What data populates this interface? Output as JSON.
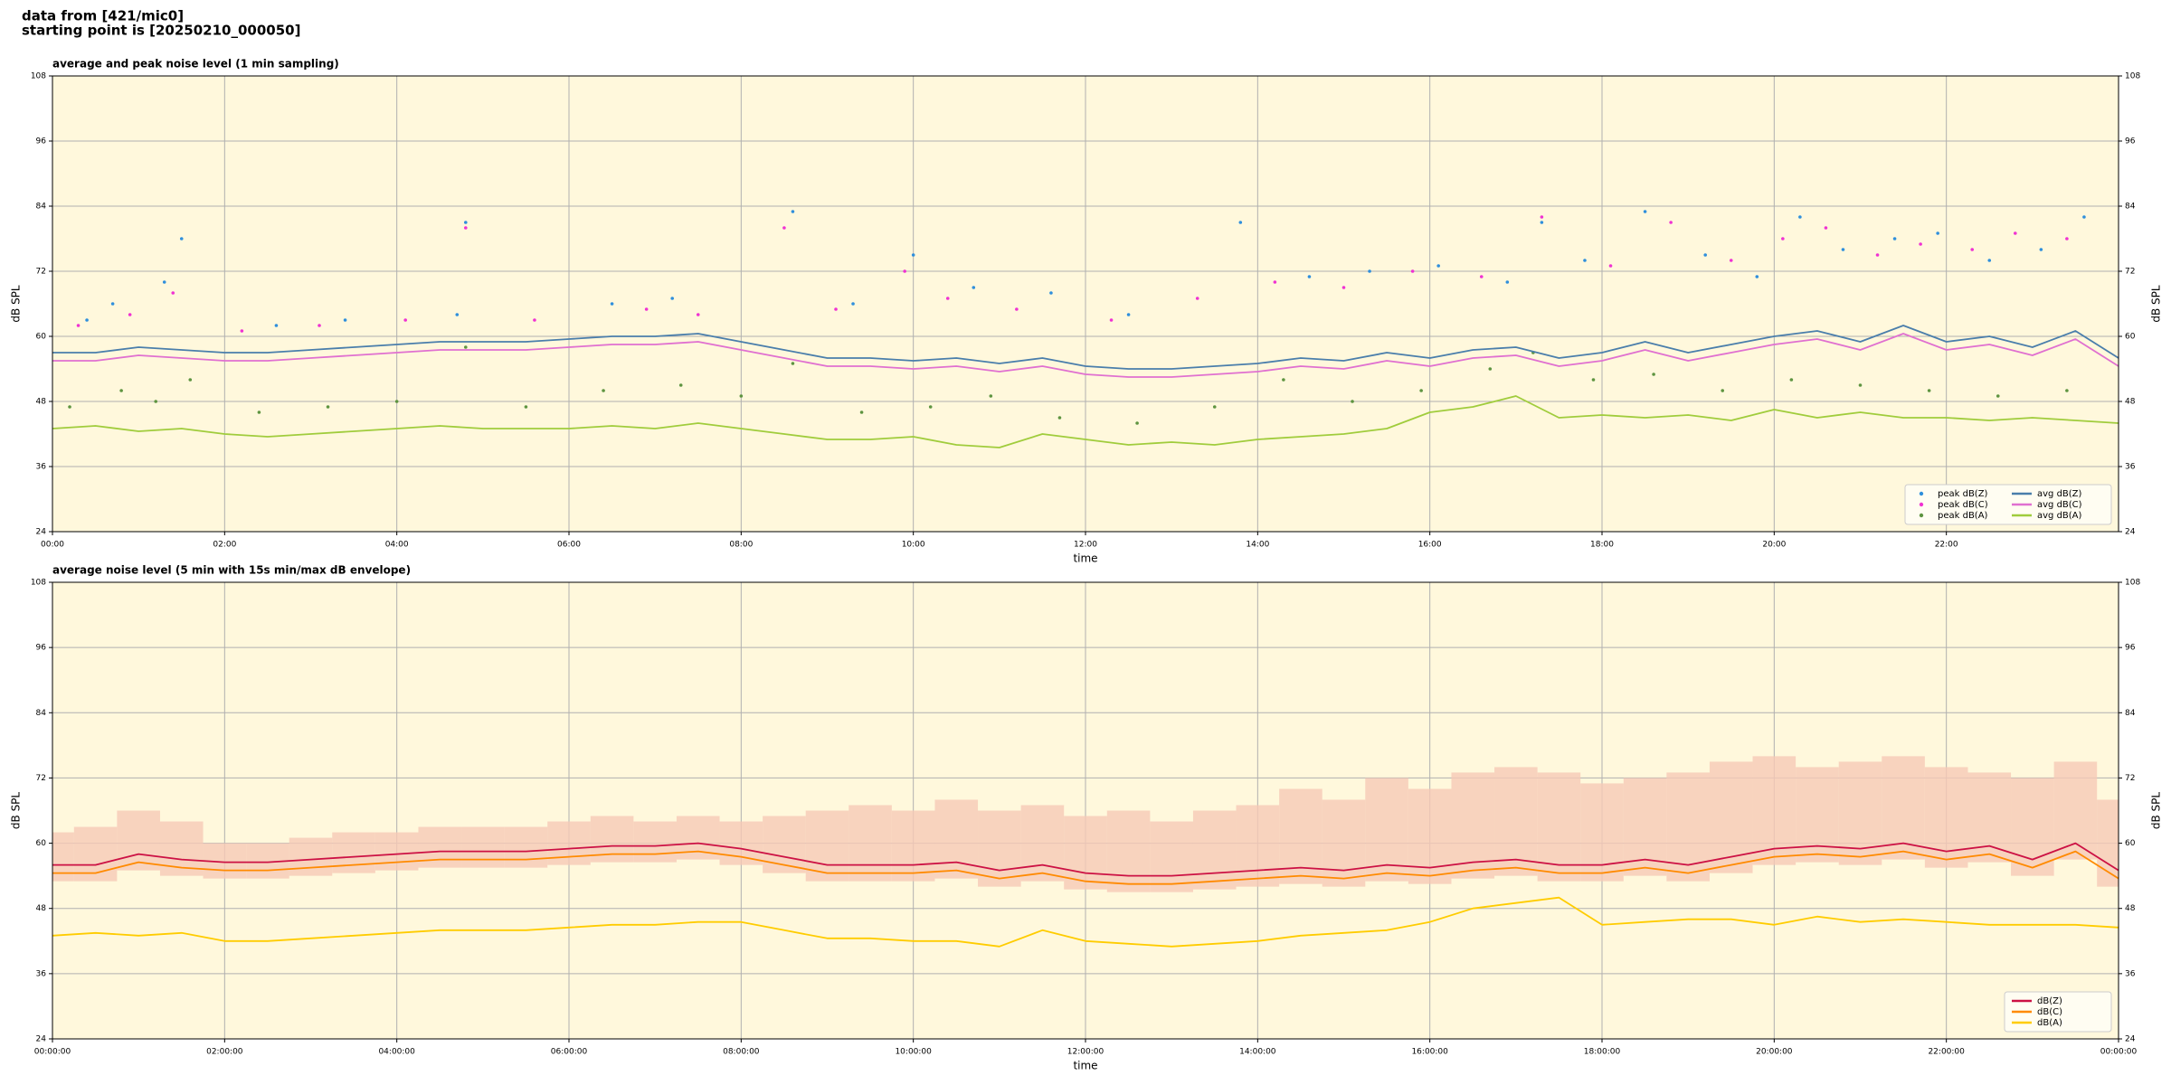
{
  "header": {
    "lines": [
      "data from [421/mic0]",
      "starting point is [20250210_000050]"
    ]
  },
  "chart_data": [
    {
      "type": "line",
      "title": "average and peak noise level (1 min sampling)",
      "xlabel": "time",
      "ylabel": "dB SPL",
      "xlim": [
        0,
        24
      ],
      "ylim": [
        24,
        108
      ],
      "yticks": [
        24,
        36,
        48,
        60,
        72,
        84,
        96,
        108
      ],
      "xticks": [
        {
          "value": 0,
          "label": "00:00"
        },
        {
          "value": 2,
          "label": "02:00"
        },
        {
          "value": 4,
          "label": "04:00"
        },
        {
          "value": 6,
          "label": "06:00"
        },
        {
          "value": 8,
          "label": "08:00"
        },
        {
          "value": 10,
          "label": "10:00"
        },
        {
          "value": 12,
          "label": "12:00"
        },
        {
          "value": 14,
          "label": "14:00"
        },
        {
          "value": 16,
          "label": "16:00"
        },
        {
          "value": 18,
          "label": "18:00"
        },
        {
          "value": 20,
          "label": "20:00"
        },
        {
          "value": 22,
          "label": "22:00"
        }
      ],
      "grid": true,
      "legend": "lower right",
      "legend_columns": 2,
      "x": [
        0,
        0.5,
        1,
        1.5,
        2,
        2.5,
        3,
        3.5,
        4,
        4.5,
        5,
        5.5,
        6,
        6.5,
        7,
        7.5,
        8,
        8.5,
        9,
        9.5,
        10,
        10.5,
        11,
        11.5,
        12,
        12.5,
        13,
        13.5,
        14,
        14.5,
        15,
        15.5,
        16,
        16.5,
        17,
        17.5,
        18,
        18.5,
        19,
        19.5,
        20,
        20.5,
        21,
        21.5,
        22,
        22.5,
        23,
        23.5,
        24
      ],
      "series": [
        {
          "name": "peak dB(Z)",
          "style": "scatter",
          "color": "#2f8fdc",
          "x": [
            0.4,
            0.7,
            1.3,
            1.5,
            2.6,
            3.4,
            4.7,
            4.8,
            6.5,
            7.2,
            8.6,
            9.3,
            10.0,
            10.7,
            11.6,
            12.5,
            13.8,
            14.6,
            15.3,
            16.1,
            16.9,
            17.3,
            17.8,
            18.5,
            19.2,
            19.8,
            20.3,
            20.8,
            21.4,
            21.9,
            22.5,
            23.1,
            23.6
          ],
          "values": [
            63,
            66,
            70,
            78,
            62,
            63,
            64,
            81,
            66,
            67,
            83,
            66,
            75,
            69,
            68,
            64,
            81,
            71,
            72,
            73,
            70,
            81,
            74,
            83,
            75,
            71,
            82,
            76,
            78,
            79,
            74,
            76,
            82
          ]
        },
        {
          "name": "peak dB(C)",
          "style": "scatter",
          "color": "#f032d2",
          "x": [
            0.3,
            0.9,
            1.4,
            2.2,
            3.1,
            4.1,
            4.8,
            5.6,
            6.9,
            7.5,
            8.5,
            9.1,
            9.9,
            10.4,
            11.2,
            12.3,
            13.3,
            14.2,
            15.0,
            15.8,
            16.6,
            17.3,
            18.1,
            18.8,
            19.5,
            20.1,
            20.6,
            21.2,
            21.7,
            22.3,
            22.8,
            23.4
          ],
          "values": [
            62,
            64,
            68,
            61,
            62,
            63,
            80,
            63,
            65,
            64,
            80,
            65,
            72,
            67,
            65,
            63,
            67,
            70,
            69,
            72,
            71,
            82,
            73,
            81,
            74,
            78,
            80,
            75,
            77,
            76,
            79,
            78
          ]
        },
        {
          "name": "peak dB(A)",
          "style": "scatter",
          "color": "#5e9440",
          "x": [
            0.2,
            0.8,
            1.2,
            1.6,
            2.4,
            3.2,
            4.0,
            4.8,
            5.5,
            6.4,
            7.3,
            8.0,
            8.6,
            9.4,
            10.2,
            10.9,
            11.7,
            12.6,
            13.5,
            14.3,
            15.1,
            15.9,
            16.7,
            17.2,
            17.9,
            18.6,
            19.4,
            20.2,
            21.0,
            21.8,
            22.6,
            23.4
          ],
          "values": [
            47,
            50,
            48,
            52,
            46,
            47,
            48,
            58,
            47,
            50,
            51,
            49,
            55,
            46,
            47,
            49,
            45,
            44,
            47,
            52,
            48,
            50,
            54,
            57,
            52,
            53,
            50,
            52,
            51,
            50,
            49,
            50
          ]
        },
        {
          "name": "avg dB(Z)",
          "style": "line",
          "color": "#4a7eab",
          "values": [
            57,
            57,
            58,
            57.5,
            57,
            57,
            57.5,
            58,
            58.5,
            59,
            59,
            59,
            59.5,
            60,
            60,
            60.5,
            59,
            57.5,
            56,
            56,
            55.5,
            56,
            55,
            56,
            54.5,
            54,
            54,
            54.5,
            55,
            56,
            55.5,
            57,
            56,
            57.5,
            58,
            56,
            57,
            59,
            57,
            58.5,
            60,
            61,
            59,
            62,
            59,
            60,
            58,
            61,
            56
          ]
        },
        {
          "name": "avg dB(C)",
          "style": "line",
          "color": "#e070d0",
          "values": [
            55.5,
            55.5,
            56.5,
            56,
            55.5,
            55.5,
            56,
            56.5,
            57,
            57.5,
            57.5,
            57.5,
            58,
            58.5,
            58.5,
            59,
            57.5,
            56,
            54.5,
            54.5,
            54,
            54.5,
            53.5,
            54.5,
            53,
            52.5,
            52.5,
            53,
            53.5,
            54.5,
            54,
            55.5,
            54.5,
            56,
            56.5,
            54.5,
            55.5,
            57.5,
            55.5,
            57,
            58.5,
            59.5,
            57.5,
            60.5,
            57.5,
            58.5,
            56.5,
            59.5,
            54.5
          ]
        },
        {
          "name": "avg dB(A)",
          "style": "line",
          "color": "#a0cc3c",
          "values": [
            43,
            43.5,
            42.5,
            43,
            42,
            41.5,
            42,
            42.5,
            43,
            43.5,
            43,
            43,
            43,
            43.5,
            43,
            44,
            43,
            42,
            41,
            41,
            41.5,
            40,
            39.5,
            42,
            41,
            40,
            40.5,
            40,
            41,
            41.5,
            42,
            43,
            46,
            47,
            49,
            45,
            45.5,
            45,
            45.5,
            44.5,
            46.5,
            45,
            46,
            45,
            45,
            44.5,
            45,
            44.5,
            44
          ]
        }
      ]
    },
    {
      "type": "line",
      "title": "average noise level (5 min with 15s min/max dB envelope)",
      "xlabel": "time",
      "ylabel": "dB SPL",
      "xlim": [
        0,
        24
      ],
      "ylim": [
        24,
        108
      ],
      "yticks": [
        24,
        36,
        48,
        60,
        72,
        84,
        96,
        108
      ],
      "xticks": [
        {
          "value": 0,
          "label": "00:00:00"
        },
        {
          "value": 2,
          "label": "02:00:00"
        },
        {
          "value": 4,
          "label": "04:00:00"
        },
        {
          "value": 6,
          "label": "06:00:00"
        },
        {
          "value": 8,
          "label": "08:00:00"
        },
        {
          "value": 10,
          "label": "10:00:00"
        },
        {
          "value": 12,
          "label": "12:00:00"
        },
        {
          "value": 14,
          "label": "14:00:00"
        },
        {
          "value": 16,
          "label": "16:00:00"
        },
        {
          "value": 18,
          "label": "18:00:00"
        },
        {
          "value": 20,
          "label": "20:00:00"
        },
        {
          "value": 22,
          "label": "22:00:00"
        },
        {
          "value": 24,
          "label": "00:00:00"
        }
      ],
      "grid": true,
      "legend": "lower right",
      "legend_columns": 1,
      "x": [
        0,
        0.5,
        1,
        1.5,
        2,
        2.5,
        3,
        3.5,
        4,
        4.5,
        5,
        5.5,
        6,
        6.5,
        7,
        7.5,
        8,
        8.5,
        9,
        9.5,
        10,
        10.5,
        11,
        11.5,
        12,
        12.5,
        13,
        13.5,
        14,
        14.5,
        15,
        15.5,
        16,
        16.5,
        17,
        17.5,
        18,
        18.5,
        19,
        19.5,
        20,
        20.5,
        21,
        21.5,
        22,
        22.5,
        23,
        23.5,
        24
      ],
      "envelope": {
        "color": "#f6c9b6",
        "upper": [
          62,
          63,
          66,
          64,
          60,
          60,
          61,
          62,
          62,
          63,
          63,
          63,
          64,
          65,
          64,
          65,
          64,
          65,
          66,
          67,
          66,
          68,
          66,
          67,
          65,
          66,
          64,
          66,
          67,
          70,
          68,
          72,
          70,
          73,
          74,
          73,
          71,
          72,
          73,
          75,
          76,
          74,
          75,
          76,
          74,
          73,
          72,
          75,
          68
        ],
        "lower": [
          53,
          53,
          55,
          54,
          53.5,
          53.5,
          54,
          54.5,
          55,
          55.5,
          55.5,
          55.5,
          56,
          56.5,
          56.5,
          57,
          56,
          54.5,
          53,
          53,
          53,
          53.5,
          52,
          53,
          51.5,
          51,
          51,
          51.5,
          52,
          52.5,
          52,
          53,
          52.5,
          53.5,
          54,
          53,
          53,
          54,
          53,
          54.5,
          56,
          56.5,
          56,
          57,
          55.5,
          56.5,
          54,
          57,
          52
        ]
      },
      "series": [
        {
          "name": "dB(Z)",
          "style": "line",
          "color": "#cc1144",
          "values": [
            56,
            56,
            58,
            57,
            56.5,
            56.5,
            57,
            57.5,
            58,
            58.5,
            58.5,
            58.5,
            59,
            59.5,
            59.5,
            60,
            59,
            57.5,
            56,
            56,
            56,
            56.5,
            55,
            56,
            54.5,
            54,
            54,
            54.5,
            55,
            55.5,
            55,
            56,
            55.5,
            56.5,
            57,
            56,
            56,
            57,
            56,
            57.5,
            59,
            59.5,
            59,
            60,
            58.5,
            59.5,
            57,
            60,
            55
          ]
        },
        {
          "name": "dB(C)",
          "style": "line",
          "color": "#ff8a00",
          "values": [
            54.5,
            54.5,
            56.5,
            55.5,
            55,
            55,
            55.5,
            56,
            56.5,
            57,
            57,
            57,
            57.5,
            58,
            58,
            58.5,
            57.5,
            56,
            54.5,
            54.5,
            54.5,
            55,
            53.5,
            54.5,
            53,
            52.5,
            52.5,
            53,
            53.5,
            54,
            53.5,
            54.5,
            54,
            55,
            55.5,
            54.5,
            54.5,
            55.5,
            54.5,
            56,
            57.5,
            58,
            57.5,
            58.5,
            57,
            58,
            55.5,
            58.5,
            53.5
          ]
        },
        {
          "name": "dB(A)",
          "style": "line",
          "color": "#ffcc00",
          "values": [
            43,
            43.5,
            43,
            43.5,
            42,
            42,
            42.5,
            43,
            43.5,
            44,
            44,
            44,
            44.5,
            45,
            45,
            45.5,
            45.5,
            44,
            42.5,
            42.5,
            42,
            42,
            41,
            44,
            42,
            41.5,
            41,
            41.5,
            42,
            43,
            43.5,
            44,
            45.5,
            48,
            49,
            50,
            45,
            45.5,
            46,
            46,
            45,
            46.5,
            45.5,
            46,
            45.5,
            45,
            45,
            45,
            44.5
          ]
        }
      ]
    }
  ]
}
